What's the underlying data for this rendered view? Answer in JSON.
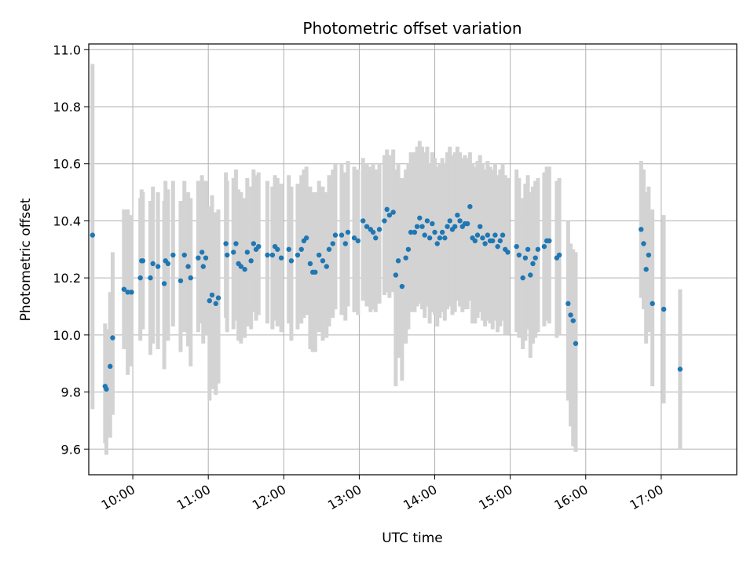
{
  "chart_data": {
    "type": "scatter",
    "title": "Photometric offset variation",
    "xlabel": "UTC time",
    "ylabel": "Photometric offset",
    "xlim": [
      "09:25",
      "18:00"
    ],
    "ylim": [
      9.51,
      11.02
    ],
    "xticks": [
      "10:00",
      "11:00",
      "12:00",
      "13:00",
      "14:00",
      "15:00",
      "16:00",
      "17:00"
    ],
    "yticks": [
      "9.6",
      "9.8",
      "10.0",
      "10.2",
      "10.4",
      "10.6",
      "10.8",
      "11.0"
    ],
    "grid": true,
    "colors": {
      "points": "#1f77b4",
      "errorbars": "#d3d3d3",
      "grid": "#b0b0b0"
    },
    "series": [
      {
        "x": [
          "09:28",
          "09:38",
          "09:39",
          "09:42",
          "09:44",
          "09:53",
          "09:56",
          "09:59",
          "10:06",
          "10:07",
          "10:08",
          "10:14",
          "10:16",
          "10:20",
          "10:25",
          "10:26",
          "10:28",
          "10:32",
          "10:38",
          "10:41",
          "10:44",
          "10:46",
          "10:52",
          "10:55",
          "10:56",
          "10:58",
          "11:01",
          "11:03",
          "11:06",
          "11:08",
          "11:14",
          "11:15",
          "11:20",
          "11:22",
          "11:24",
          "11:26",
          "11:29",
          "11:31",
          "11:34",
          "11:36",
          "11:38",
          "11:40",
          "11:47",
          "11:51",
          "11:53",
          "11:55",
          "11:58",
          "12:04",
          "12:06",
          "12:11",
          "12:14",
          "12:16",
          "12:18",
          "12:21",
          "12:23",
          "12:25",
          "12:28",
          "12:31",
          "12:34",
          "12:36",
          "12:39",
          "12:41",
          "12:46",
          "12:49",
          "12:51",
          "12:56",
          "12:59",
          "13:03",
          "13:06",
          "13:09",
          "13:11",
          "13:13",
          "13:16",
          "13:20",
          "13:22",
          "13:24",
          "13:27",
          "13:29",
          "13:31",
          "13:34",
          "13:37",
          "13:39",
          "13:41",
          "13:44",
          "13:46",
          "13:48",
          "13:50",
          "13:52",
          "13:54",
          "13:56",
          "13:58",
          "14:00",
          "14:02",
          "14:04",
          "14:06",
          "14:08",
          "14:10",
          "14:12",
          "14:14",
          "14:16",
          "14:18",
          "14:20",
          "14:22",
          "14:24",
          "14:26",
          "14:28",
          "14:30",
          "14:32",
          "14:34",
          "14:36",
          "14:38",
          "14:40",
          "14:42",
          "14:44",
          "14:46",
          "14:48",
          "14:50",
          "14:52",
          "14:54",
          "14:56",
          "14:58",
          "15:05",
          "15:07",
          "15:10",
          "15:12",
          "15:14",
          "15:16",
          "15:18",
          "15:20",
          "15:22",
          "15:27",
          "15:29",
          "15:31",
          "15:37",
          "15:39",
          "15:46",
          "15:48",
          "15:50",
          "15:52",
          "16:44",
          "16:46",
          "16:48",
          "16:50",
          "16:53",
          "17:02",
          "17:15"
        ],
        "y": [
          10.35,
          9.82,
          9.81,
          9.89,
          9.99,
          10.16,
          10.15,
          10.15,
          10.2,
          10.26,
          10.26,
          10.2,
          10.25,
          10.24,
          10.18,
          10.26,
          10.25,
          10.28,
          10.19,
          10.28,
          10.24,
          10.2,
          10.27,
          10.29,
          10.24,
          10.27,
          10.12,
          10.14,
          10.11,
          10.13,
          10.32,
          10.28,
          10.29,
          10.32,
          10.25,
          10.24,
          10.23,
          10.29,
          10.26,
          10.32,
          10.3,
          10.31,
          10.28,
          10.28,
          10.31,
          10.3,
          10.27,
          10.3,
          10.26,
          10.28,
          10.3,
          10.33,
          10.34,
          10.25,
          10.22,
          10.22,
          10.28,
          10.26,
          10.24,
          10.3,
          10.32,
          10.35,
          10.35,
          10.32,
          10.36,
          10.34,
          10.33,
          10.4,
          10.38,
          10.37,
          10.36,
          10.34,
          10.37,
          10.4,
          10.44,
          10.42,
          10.43,
          10.21,
          10.26,
          10.17,
          10.27,
          10.3,
          10.36,
          10.36,
          10.38,
          10.41,
          10.38,
          10.35,
          10.4,
          10.34,
          10.39,
          10.36,
          10.32,
          10.34,
          10.36,
          10.34,
          10.38,
          10.4,
          10.37,
          10.38,
          10.42,
          10.4,
          10.38,
          10.39,
          10.39,
          10.45,
          10.34,
          10.33,
          10.35,
          10.38,
          10.34,
          10.32,
          10.35,
          10.33,
          10.33,
          10.35,
          10.31,
          10.33,
          10.35,
          10.3,
          10.29,
          10.31,
          10.28,
          10.2,
          10.27,
          10.3,
          10.21,
          10.25,
          10.27,
          10.3,
          10.31,
          10.33,
          10.33,
          10.27,
          10.28,
          10.11,
          10.07,
          10.05,
          9.97,
          10.37,
          10.32,
          10.23,
          10.28,
          10.11,
          10.09,
          9.88
        ],
        "err_low": [
          9.74,
          9.62,
          9.58,
          9.64,
          9.72,
          9.95,
          9.86,
          9.89,
          9.98,
          10.04,
          10.02,
          9.93,
          9.97,
          9.95,
          9.88,
          10.01,
          9.98,
          10.03,
          9.94,
          10.01,
          9.96,
          9.89,
          10.01,
          10.04,
          9.97,
          10.0,
          9.77,
          9.81,
          9.79,
          9.83,
          10.06,
          10.01,
          10.02,
          10.05,
          9.98,
          9.97,
          9.99,
          10.03,
          10.02,
          10.08,
          10.05,
          10.07,
          10.04,
          10.02,
          10.05,
          10.03,
          10.01,
          10.04,
          9.98,
          10.02,
          10.04,
          10.06,
          10.07,
          9.95,
          9.94,
          9.94,
          10.01,
          9.98,
          9.99,
          10.03,
          10.06,
          10.09,
          10.07,
          10.05,
          10.1,
          10.08,
          10.07,
          10.12,
          10.1,
          10.08,
          10.09,
          10.08,
          10.11,
          10.14,
          10.15,
          10.13,
          10.15,
          9.82,
          9.92,
          9.84,
          9.97,
          10.02,
          10.08,
          10.08,
          10.1,
          10.11,
          10.09,
          10.06,
          10.1,
          10.04,
          10.08,
          10.07,
          10.03,
          10.06,
          10.08,
          10.05,
          10.09,
          10.1,
          10.07,
          10.08,
          10.12,
          10.1,
          10.08,
          10.09,
          10.09,
          10.12,
          10.04,
          10.04,
          10.06,
          10.08,
          10.05,
          10.03,
          10.05,
          10.04,
          10.02,
          10.05,
          10.01,
          10.03,
          10.05,
          10.0,
          10.0,
          10.01,
          9.99,
          9.95,
          9.98,
          10.02,
          9.92,
          9.97,
          9.99,
          10.01,
          10.03,
          10.05,
          10.04,
          9.99,
          10.0,
          9.77,
          9.68,
          9.61,
          9.59,
          10.13,
          10.09,
          9.97,
          10.01,
          9.82,
          9.76,
          9.6
        ],
        "err_high": [
          10.95,
          10.04,
          10.02,
          10.15,
          10.29,
          10.44,
          10.44,
          10.42,
          10.48,
          10.51,
          10.5,
          10.47,
          10.52,
          10.5,
          10.47,
          10.54,
          10.51,
          10.54,
          10.47,
          10.54,
          10.5,
          10.48,
          10.54,
          10.56,
          10.52,
          10.54,
          10.45,
          10.49,
          10.43,
          10.44,
          10.57,
          10.54,
          10.55,
          10.58,
          10.51,
          10.5,
          10.48,
          10.55,
          10.52,
          10.58,
          10.56,
          10.57,
          10.54,
          10.52,
          10.56,
          10.55,
          10.53,
          10.56,
          10.52,
          10.53,
          10.56,
          10.58,
          10.59,
          10.52,
          10.5,
          10.5,
          10.54,
          10.52,
          10.5,
          10.56,
          10.58,
          10.6,
          10.6,
          10.57,
          10.61,
          10.59,
          10.58,
          10.62,
          10.6,
          10.59,
          10.6,
          10.58,
          10.6,
          10.63,
          10.65,
          10.63,
          10.65,
          10.58,
          10.6,
          10.55,
          10.58,
          10.6,
          10.64,
          10.64,
          10.66,
          10.68,
          10.66,
          10.64,
          10.66,
          10.6,
          10.64,
          10.62,
          10.59,
          10.6,
          10.62,
          10.6,
          10.64,
          10.66,
          10.63,
          10.64,
          10.66,
          10.64,
          10.62,
          10.63,
          10.62,
          10.64,
          10.6,
          10.59,
          10.61,
          10.63,
          10.6,
          10.58,
          10.61,
          10.59,
          10.58,
          10.6,
          10.56,
          10.58,
          10.6,
          10.56,
          10.55,
          10.58,
          10.55,
          10.48,
          10.53,
          10.56,
          10.5,
          10.52,
          10.54,
          10.55,
          10.57,
          10.59,
          10.59,
          10.54,
          10.55,
          10.4,
          10.32,
          10.3,
          10.29,
          10.61,
          10.58,
          10.5,
          10.52,
          10.44,
          10.42,
          10.16
        ]
      }
    ]
  }
}
